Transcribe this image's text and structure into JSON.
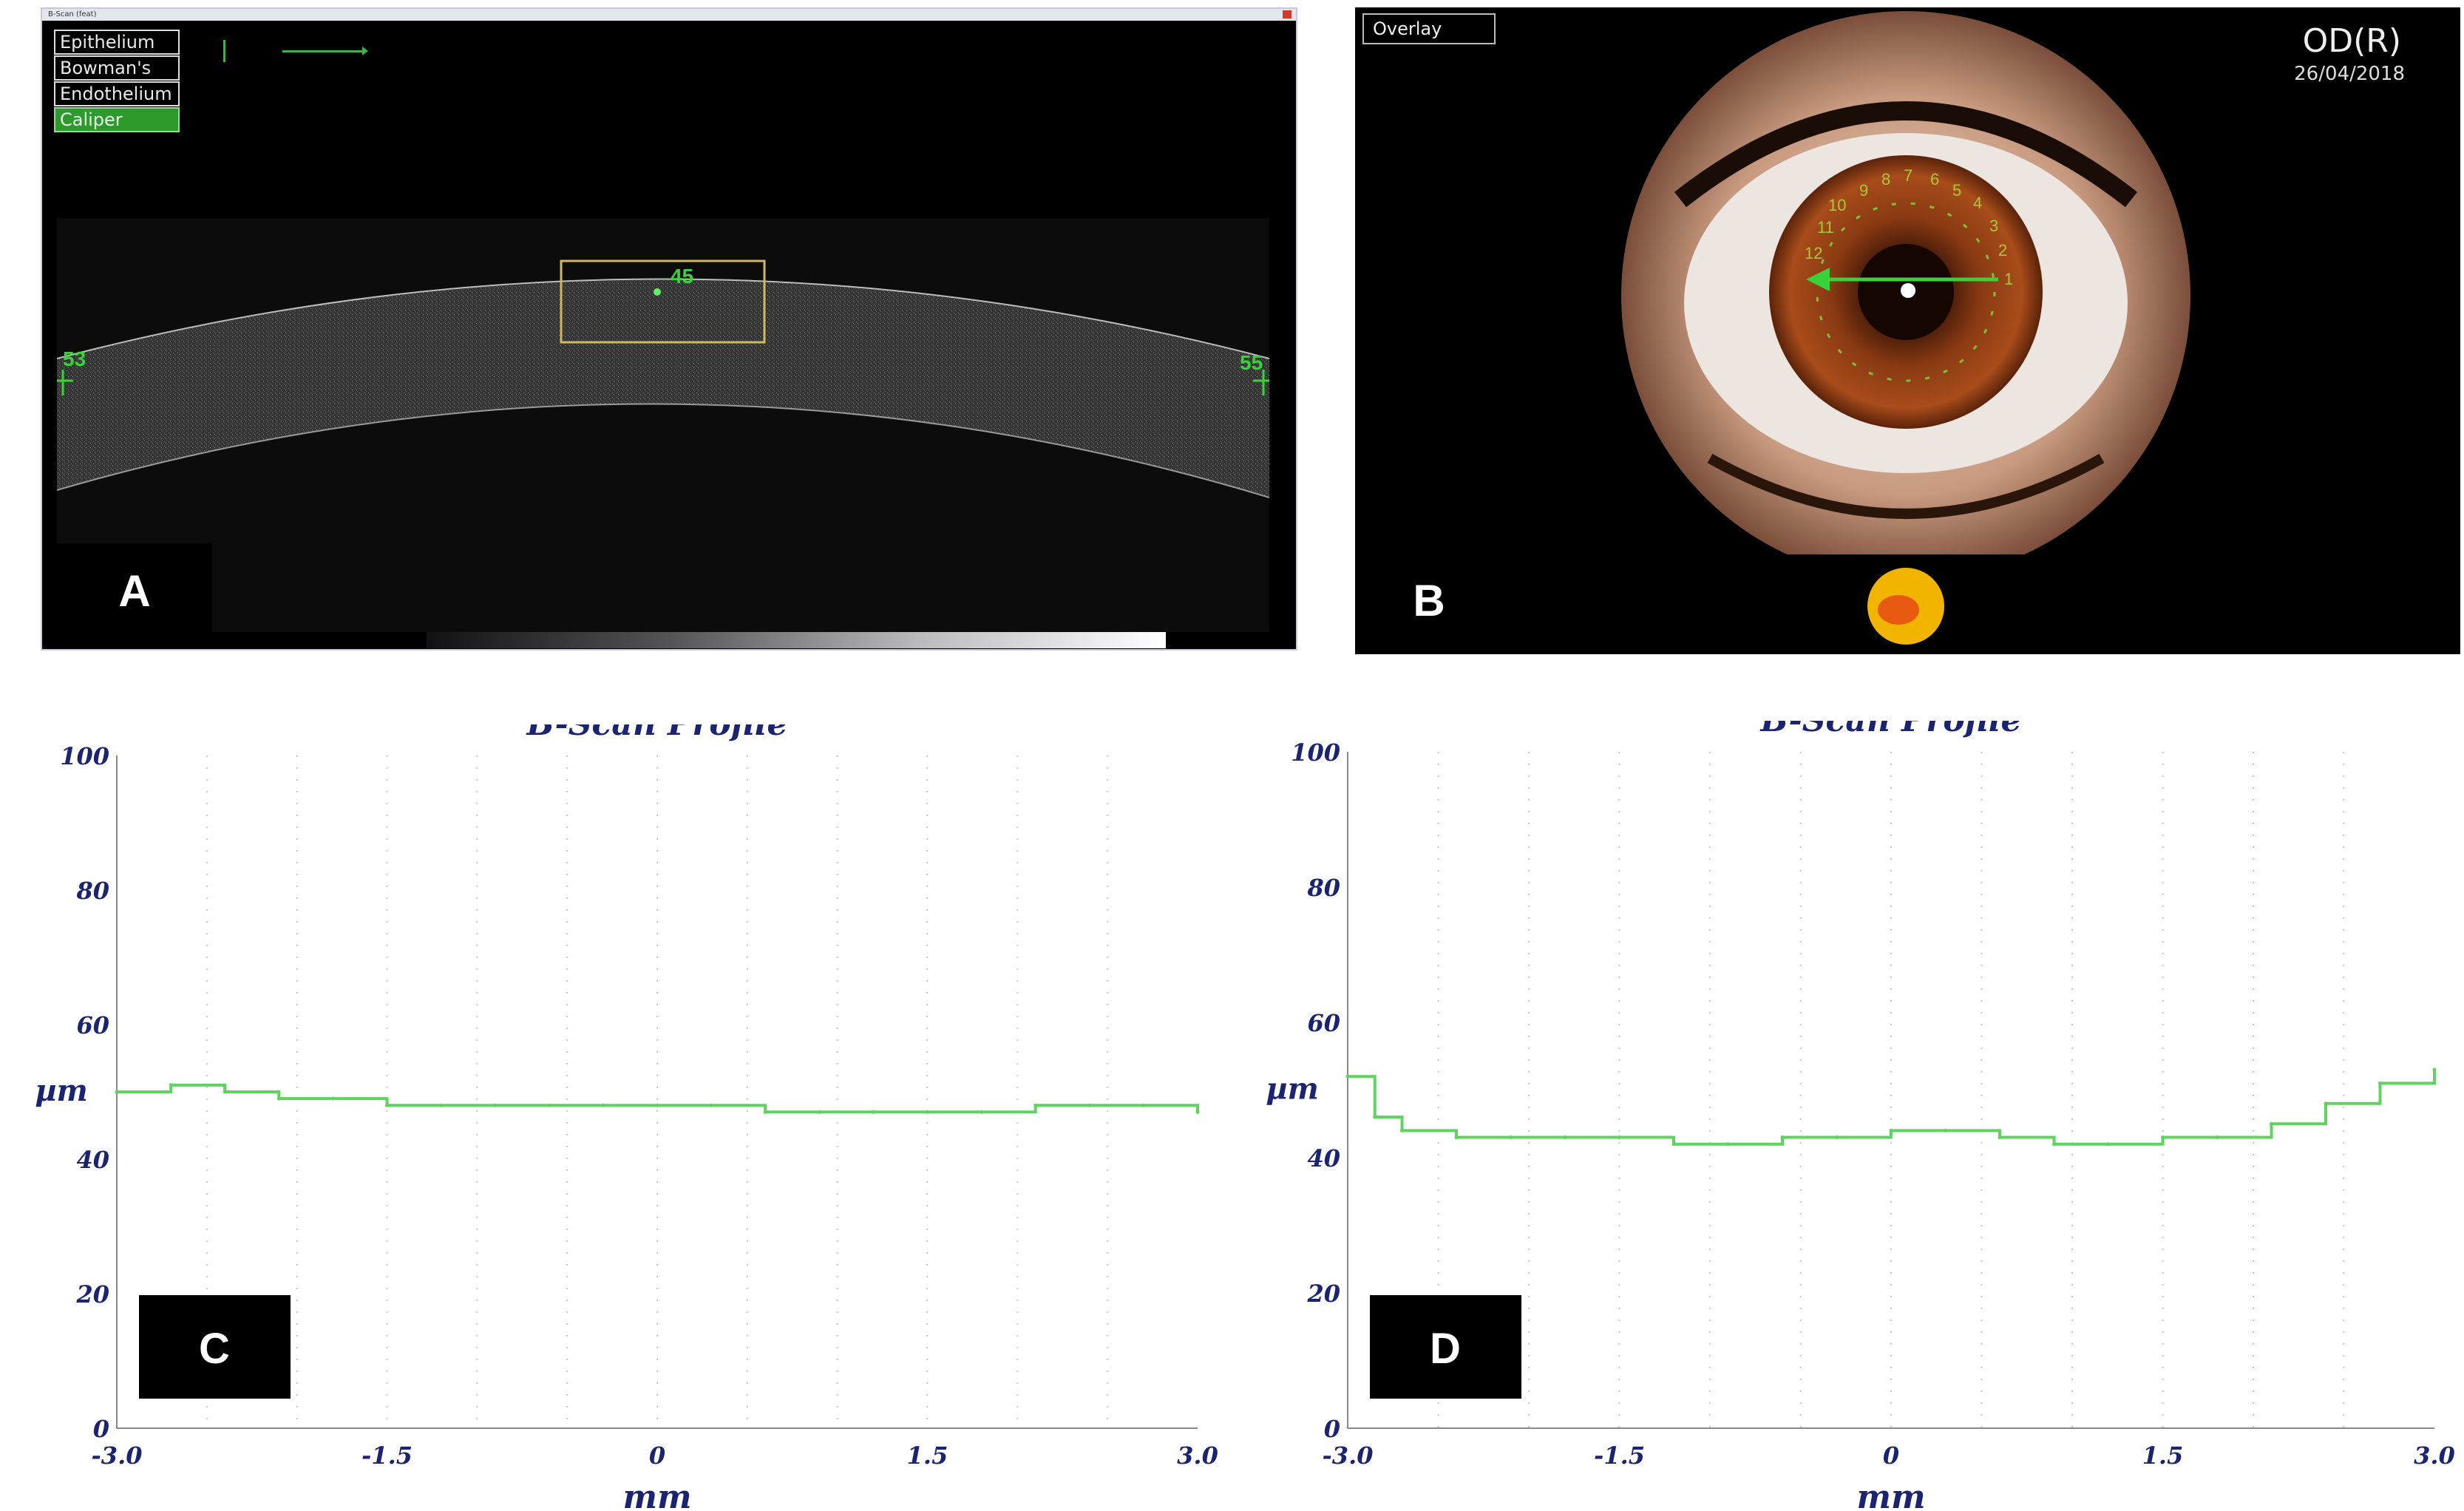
{
  "panel_a": {
    "window_title": "B-Scan (feat)",
    "layers": [
      "Epithelium",
      "Bowman's",
      "Endothelium",
      "Caliper"
    ],
    "selected_layer": "Caliper",
    "center_value": "45",
    "left_value": "53",
    "right_value": "55",
    "indicator": "1",
    "label": "A"
  },
  "panel_b": {
    "overlay_label": "Overlay",
    "eye_id": "OD(R)",
    "date": "26/04/2018",
    "clock_numbers": [
      "1",
      "2",
      "3",
      "4",
      "5",
      "6",
      "7",
      "8",
      "9",
      "10",
      "11",
      "12"
    ],
    "label": "B"
  },
  "colors": {
    "trace": "#5fd35f",
    "axis_text": "#1a2470",
    "overlay_green": "#39d339"
  },
  "chart_data": [
    {
      "type": "line",
      "title": "B-Scan Profile",
      "xlabel": "mm",
      "ylabel": "µm",
      "xlim": [
        -3.0,
        3.0
      ],
      "ylim": [
        0,
        100
      ],
      "xticks": [
        "-3.0",
        "-1.5",
        "0",
        "1.5",
        "3.0"
      ],
      "yticks": [
        "0",
        "20",
        "40",
        "60",
        "80",
        "100"
      ],
      "grid": "vertical dotted",
      "series": [
        {
          "x": [
            -3.0,
            -2.7,
            -2.4,
            -2.1,
            -1.8,
            -1.5,
            -1.2,
            -0.9,
            -0.6,
            -0.3,
            0,
            0.3,
            0.6,
            0.9,
            1.2,
            1.5,
            1.8,
            2.1,
            2.4,
            2.7,
            3.0
          ],
          "values": [
            50,
            51,
            50,
            49,
            49,
            48,
            48,
            48,
            48,
            48,
            48,
            48,
            47,
            47,
            47,
            47,
            47,
            48,
            48,
            48,
            47
          ]
        }
      ],
      "label": "C"
    },
    {
      "type": "line",
      "title": "B-Scan Profile",
      "xlabel": "mm",
      "ylabel": "µm",
      "xlim": [
        -3.0,
        3.0
      ],
      "ylim": [
        0,
        100
      ],
      "xticks": [
        "-3.0",
        "-1.5",
        "0",
        "1.5",
        "3.0"
      ],
      "yticks": [
        "0",
        "20",
        "40",
        "60",
        "80",
        "100"
      ],
      "grid": "vertical dotted",
      "series": [
        {
          "x": [
            -3.0,
            -2.85,
            -2.7,
            -2.4,
            -2.1,
            -1.8,
            -1.5,
            -1.2,
            -0.9,
            -0.6,
            -0.3,
            0,
            0.3,
            0.6,
            0.9,
            1.2,
            1.5,
            1.8,
            2.1,
            2.4,
            2.7,
            3.0
          ],
          "values": [
            52,
            46,
            44,
            43,
            43,
            43,
            43,
            42,
            42,
            43,
            43,
            44,
            44,
            43,
            42,
            42,
            43,
            43,
            45,
            48,
            51,
            53
          ]
        }
      ],
      "label": "D"
    }
  ]
}
